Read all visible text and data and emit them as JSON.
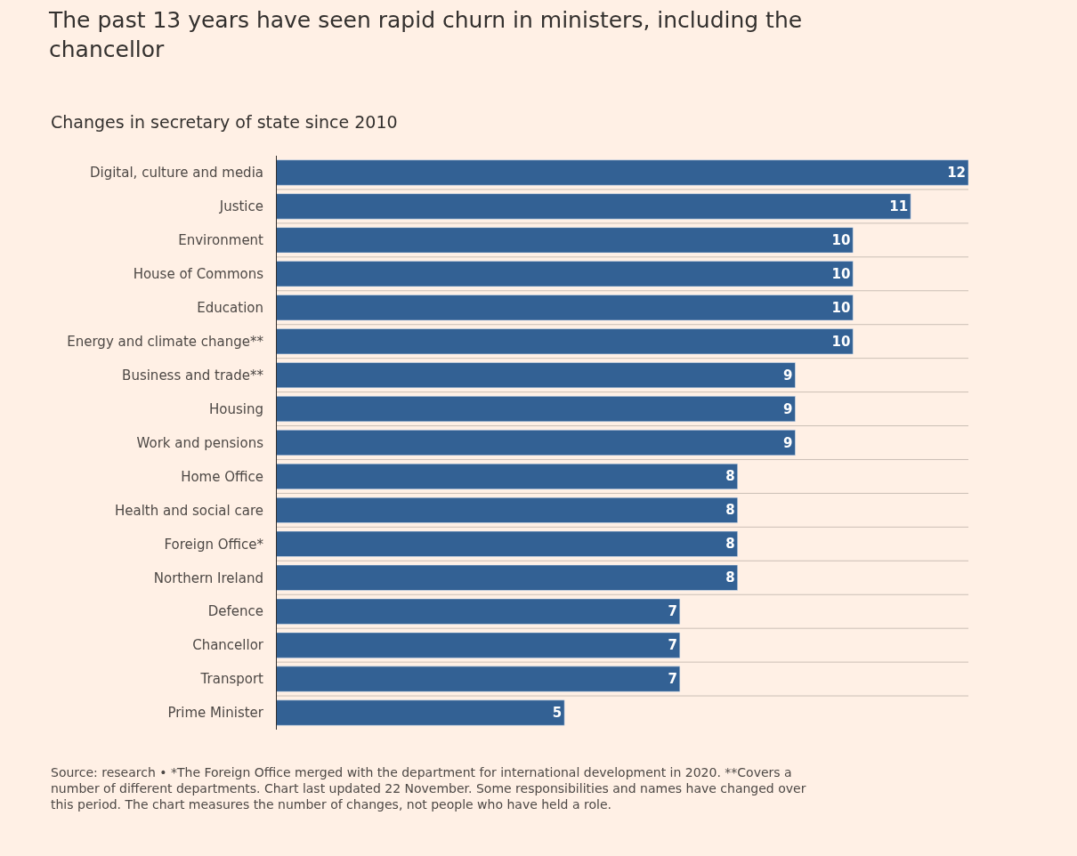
{
  "chart_data": {
    "type": "bar",
    "orientation": "horizontal",
    "title": "The past 13 years have seen rapid churn in ministers, including the chancellor",
    "subtitle": "Changes in secretary of state since 2010",
    "categories": [
      "Digital, culture and media",
      "Justice",
      "Environment",
      "House of Commons",
      "Education",
      "Energy and climate change**",
      "Business and trade**",
      "Housing",
      "Work and pensions",
      "Home Office",
      "Health and social care",
      "Foreign Office*",
      "Northern Ireland",
      "Defence",
      "Chancellor",
      "Transport",
      "Prime Minister"
    ],
    "values": [
      12,
      11,
      10,
      10,
      10,
      10,
      9,
      9,
      9,
      8,
      8,
      8,
      8,
      7,
      7,
      7,
      5
    ],
    "color": "#336194",
    "data_labels": true,
    "xlim": [
      0,
      12
    ],
    "tick_labels": "y",
    "grid": "y",
    "annotations": [
      "Source: research • *The Foreign Office merged with the department for international development in 2020. **Covers a number of different departments. Chart last updated 22 November. Some responsibilities and names have changed over this period. The chart measures the number of changes, not people who have held a role."
    ]
  }
}
